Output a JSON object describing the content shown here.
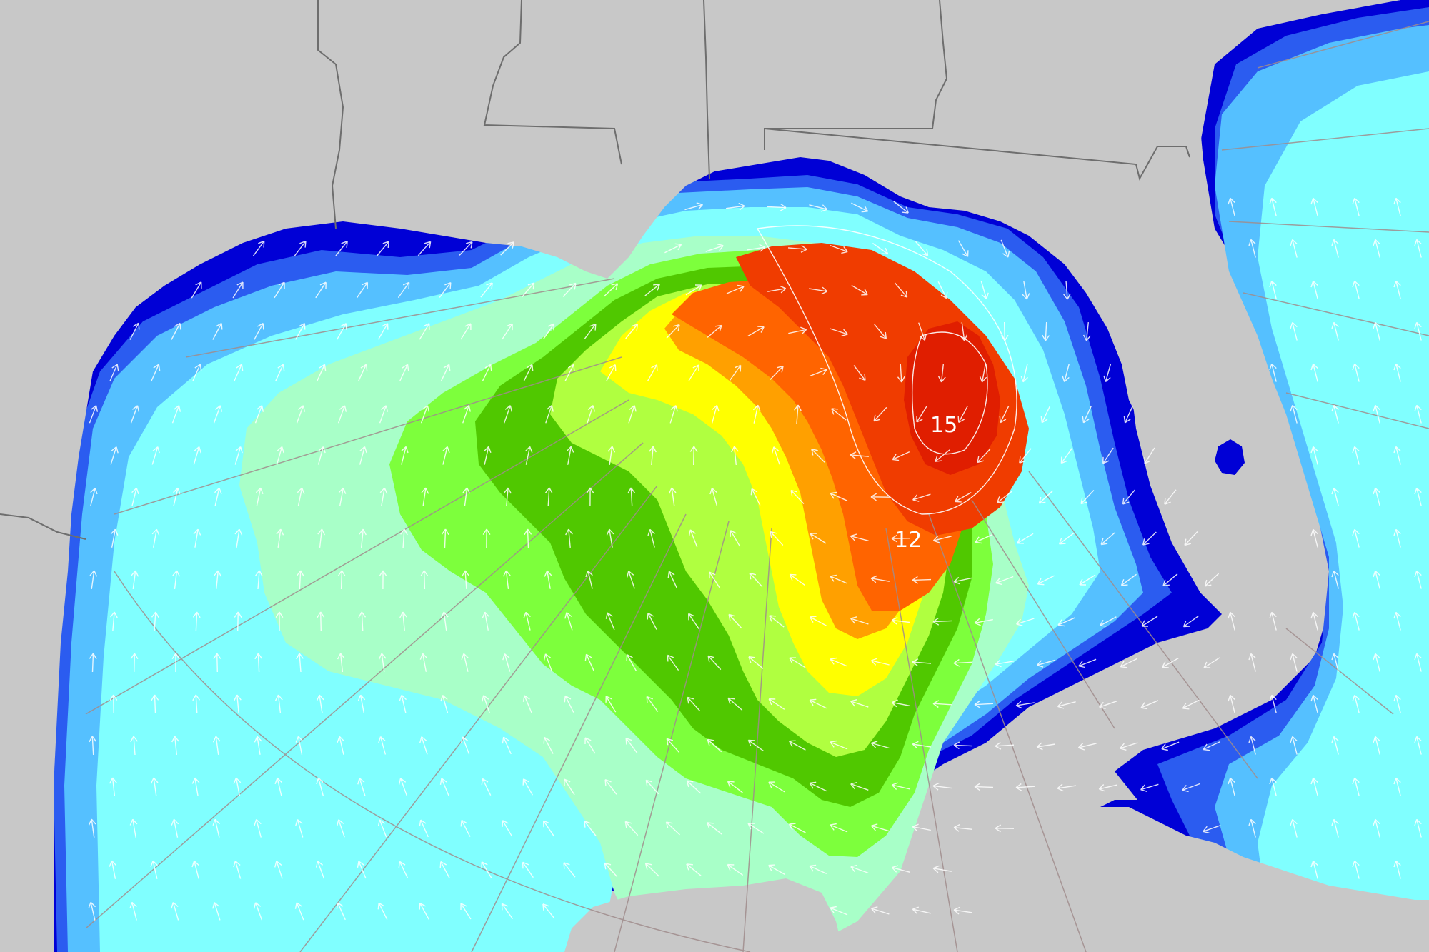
{
  "map": {
    "contour_labels": [
      {
        "text": "15"
      },
      {
        "text": "12"
      }
    ],
    "colors": {
      "land": "#c8c8c8",
      "border": "#6e6e6e",
      "coast_deep": "#0000d6",
      "band_1": "#2b5cf0",
      "band_2": "#55c0ff",
      "band_3": "#80ffff",
      "band_4": "#a8ffc8",
      "band_5": "#7dff3c",
      "band_6": "#50c800",
      "band_7": "#b0ff40",
      "band_8": "#ffff00",
      "band_9": "#ffa000",
      "band_10": "#ff6400",
      "band_11": "#f03c00",
      "band_12": "#e01e00",
      "arrow": "#ffffff",
      "grid_line": "#a08c8c"
    },
    "icons": [
      "direction-arrow-icon"
    ]
  }
}
